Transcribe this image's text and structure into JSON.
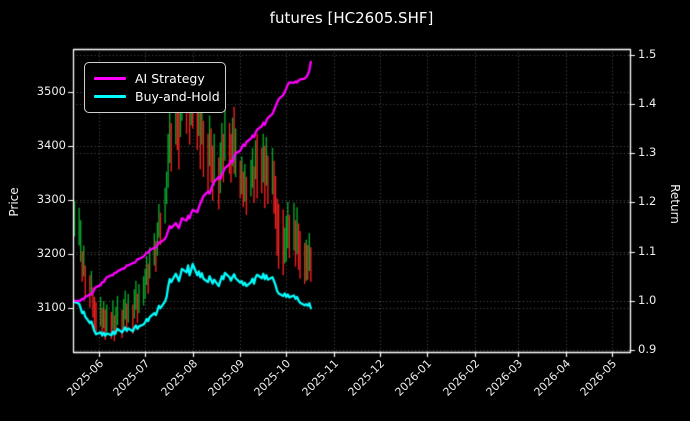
{
  "chart_data": {
    "type": "mixed",
    "title": "futures [HC2605.SHF]",
    "background": "#000000",
    "axes": {
      "x": {
        "start": "2025-05-15",
        "end": "2026-05-13",
        "grid": true,
        "ticks": [
          {
            "date": "2025-06-01",
            "label": "2025-06"
          },
          {
            "date": "2025-07-01",
            "label": "2025-07"
          },
          {
            "date": "2025-08-01",
            "label": "2025-08"
          },
          {
            "date": "2025-09-01",
            "label": "2025-09"
          },
          {
            "date": "2025-10-01",
            "label": "2025-10"
          },
          {
            "date": "2025-11-01",
            "label": "2025-11"
          },
          {
            "date": "2025-12-01",
            "label": "2025-12"
          },
          {
            "date": "2026-01-01",
            "label": "2026-01"
          },
          {
            "date": "2026-02-01",
            "label": "2026-02"
          },
          {
            "date": "2026-03-01",
            "label": "2026-03"
          },
          {
            "date": "2026-04-01",
            "label": "2026-04"
          },
          {
            "date": "2026-05-01",
            "label": "2026-05"
          }
        ]
      },
      "price": {
        "label": "Price",
        "side": "left",
        "min": 3018,
        "max": 3579,
        "ticks": [
          {
            "value": 3500,
            "label": "3500"
          },
          {
            "value": 3400,
            "label": "3400"
          },
          {
            "value": 3300,
            "label": "3300"
          },
          {
            "value": 3200,
            "label": "3200"
          },
          {
            "value": 3100,
            "label": "3100"
          }
        ]
      },
      "return": {
        "label": "Return",
        "side": "right",
        "min": 0.896,
        "max": 1.512,
        "ticks": [
          {
            "value": 1.5,
            "label": "1.5"
          },
          {
            "value": 1.4,
            "label": "1.4"
          },
          {
            "value": 1.3,
            "label": "1.3"
          },
          {
            "value": 1.2,
            "label": "1.2"
          },
          {
            "value": 1.1,
            "label": "1.1"
          },
          {
            "value": 1.0,
            "label": "1.0"
          },
          {
            "value": 0.9,
            "label": "0.9"
          }
        ]
      }
    },
    "legend": {
      "position": "upper-left",
      "items": [
        {
          "label": "AI Strategy",
          "color": "#ff00ff"
        },
        {
          "label": "Buy-and-Hold",
          "color": "#00ffff"
        }
      ]
    },
    "dates": [
      "2025-05-16",
      "2025-05-19",
      "2025-05-20",
      "2025-05-21",
      "2025-05-22",
      "2025-05-23",
      "2025-05-26",
      "2025-05-27",
      "2025-05-28",
      "2025-05-29",
      "2025-05-30",
      "2025-06-02",
      "2025-06-03",
      "2025-06-04",
      "2025-06-05",
      "2025-06-06",
      "2025-06-09",
      "2025-06-10",
      "2025-06-11",
      "2025-06-12",
      "2025-06-13",
      "2025-06-16",
      "2025-06-17",
      "2025-06-18",
      "2025-06-19",
      "2025-06-20",
      "2025-06-23",
      "2025-06-24",
      "2025-06-25",
      "2025-06-26",
      "2025-06-27",
      "2025-06-30",
      "2025-07-01",
      "2025-07-02",
      "2025-07-03",
      "2025-07-04",
      "2025-07-07",
      "2025-07-08",
      "2025-07-09",
      "2025-07-10",
      "2025-07-11",
      "2025-07-14",
      "2025-07-15",
      "2025-07-16",
      "2025-07-17",
      "2025-07-18",
      "2025-07-21",
      "2025-07-22",
      "2025-07-23",
      "2025-07-24",
      "2025-07-25",
      "2025-07-28",
      "2025-07-29",
      "2025-07-30",
      "2025-07-31",
      "2025-08-01",
      "2025-08-04",
      "2025-08-05",
      "2025-08-06",
      "2025-08-07",
      "2025-08-08",
      "2025-08-11",
      "2025-08-12",
      "2025-08-13",
      "2025-08-14",
      "2025-08-15",
      "2025-08-18",
      "2025-08-19",
      "2025-08-20",
      "2025-08-21",
      "2025-08-22",
      "2025-08-25",
      "2025-08-26",
      "2025-08-27",
      "2025-08-28",
      "2025-08-29",
      "2025-09-01",
      "2025-09-02",
      "2025-09-03",
      "2025-09-04",
      "2025-09-05",
      "2025-09-08",
      "2025-09-09",
      "2025-09-10",
      "2025-09-11",
      "2025-09-12",
      "2025-09-15",
      "2025-09-16",
      "2025-09-17",
      "2025-09-18",
      "2025-09-19",
      "2025-09-22",
      "2025-09-23",
      "2025-09-24",
      "2025-09-25",
      "2025-09-26",
      "2025-09-29",
      "2025-09-30",
      "2025-10-01",
      "2025-10-02",
      "2025-10-03",
      "2025-10-06",
      "2025-10-07",
      "2025-10-08",
      "2025-10-09",
      "2025-10-10",
      "2025-10-13",
      "2025-10-14",
      "2025-10-15",
      "2025-10-16",
      "2025-10-17"
    ],
    "series": [
      {
        "name": "price-high-low-bars",
        "type": "hl-bar",
        "axis": "price",
        "up_color": "#0ca32a",
        "down_color": "#ef2020",
        "high": [
          3298,
          3285,
          3262,
          3205,
          3215,
          3178,
          3160,
          3168,
          3138,
          3120,
          3110,
          3120,
          3100,
          3112,
          3096,
          3106,
          3092,
          3114,
          3086,
          3102,
          3122,
          3096,
          3116,
          3132,
          3108,
          3126,
          3106,
          3134,
          3150,
          3126,
          3144,
          3158,
          3172,
          3196,
          3182,
          3212,
          3238,
          3224,
          3258,
          3292,
          3276,
          3322,
          3352,
          3422,
          3478,
          3442,
          3514,
          3532,
          3502,
          3526,
          3548,
          3542,
          3545,
          3522,
          3540,
          3532,
          3498,
          3520,
          3472,
          3496,
          3446,
          3422,
          3456,
          3432,
          3400,
          3422,
          3378,
          3406,
          3442,
          3422,
          3468,
          3442,
          3422,
          3452,
          3472,
          3432,
          3372,
          3380,
          3352,
          3366,
          3342,
          3374,
          3396,
          3362,
          3410,
          3422,
          3396,
          3422,
          3400,
          3416,
          3382,
          3396,
          3372,
          3344,
          3302,
          3292,
          3282,
          3248,
          3270,
          3296,
          3272,
          3294,
          3262,
          3286,
          3256,
          3242,
          3220,
          3226,
          3216,
          3238,
          3212
        ],
        "low": [
          3232,
          3215,
          3185,
          3148,
          3158,
          3120,
          3100,
          3122,
          3082,
          3062,
          3052,
          3066,
          3046,
          3062,
          3040,
          3056,
          3042,
          3060,
          3038,
          3050,
          3068,
          3044,
          3062,
          3078,
          3054,
          3072,
          3052,
          3080,
          3096,
          3072,
          3090,
          3104,
          3116,
          3142,
          3126,
          3154,
          3178,
          3166,
          3196,
          3230,
          3216,
          3256,
          3292,
          3322,
          3368,
          3352,
          3402,
          3392,
          3356,
          3416,
          3446,
          3422,
          3462,
          3402,
          3438,
          3432,
          3392,
          3418,
          3356,
          3402,
          3342,
          3312,
          3362,
          3332,
          3298,
          3326,
          3282,
          3312,
          3346,
          3332,
          3372,
          3348,
          3332,
          3362,
          3348,
          3342,
          3302,
          3310,
          3286,
          3296,
          3272,
          3306,
          3322,
          3294,
          3338,
          3302,
          3312,
          3332,
          3284,
          3326,
          3292,
          3310,
          3274,
          3246,
          3196,
          3172,
          3160,
          3182,
          3186,
          3210,
          3192,
          3206,
          3176,
          3200,
          3170,
          3154,
          3144,
          3150,
          3152,
          3168,
          3148
        ],
        "dir": [
          "u",
          "u",
          "u",
          "d",
          "u",
          "d",
          "d",
          "u",
          "d",
          "d",
          "d",
          "u",
          "d",
          "u",
          "d",
          "u",
          "d",
          "u",
          "d",
          "u",
          "u",
          "d",
          "u",
          "u",
          "d",
          "u",
          "d",
          "u",
          "u",
          "d",
          "u",
          "u",
          "u",
          "u",
          "d",
          "u",
          "u",
          "d",
          "u",
          "u",
          "d",
          "u",
          "u",
          "u",
          "u",
          "d",
          "u",
          "d",
          "d",
          "u",
          "u",
          "d",
          "u",
          "d",
          "u",
          "d",
          "d",
          "u",
          "d",
          "u",
          "d",
          "d",
          "u",
          "d",
          "d",
          "u",
          "d",
          "u",
          "u",
          "d",
          "u",
          "d",
          "d",
          "u",
          "d",
          "u",
          "d",
          "u",
          "d",
          "u",
          "d",
          "u",
          "u",
          "d",
          "u",
          "d",
          "d",
          "u",
          "d",
          "u",
          "d",
          "u",
          "d",
          "d",
          "d",
          "d",
          "d",
          "u",
          "u",
          "u",
          "d",
          "u",
          "d",
          "u",
          "d",
          "d",
          "d",
          "u",
          "d",
          "u",
          "d"
        ]
      },
      {
        "name": "AI Strategy",
        "type": "line",
        "axis": "return",
        "color": "#ff00ff",
        "values": [
          1.0,
          1.0,
          1.001,
          1.004,
          1.003,
          1.008,
          1.013,
          1.013,
          1.018,
          1.024,
          1.028,
          1.032,
          1.038,
          1.038,
          1.044,
          1.048,
          1.052,
          1.052,
          1.057,
          1.057,
          1.06,
          1.065,
          1.065,
          1.068,
          1.072,
          1.072,
          1.077,
          1.077,
          1.08,
          1.085,
          1.085,
          1.09,
          1.094,
          1.098,
          1.098,
          1.103,
          1.108,
          1.108,
          1.113,
          1.119,
          1.119,
          1.126,
          1.133,
          1.142,
          1.152,
          1.148,
          1.158,
          1.152,
          1.148,
          1.158,
          1.168,
          1.163,
          1.173,
          1.168,
          1.178,
          1.185,
          1.18,
          1.19,
          1.198,
          1.205,
          1.213,
          1.222,
          1.218,
          1.227,
          1.236,
          1.242,
          1.252,
          1.248,
          1.257,
          1.263,
          1.27,
          1.278,
          1.285,
          1.282,
          1.292,
          1.3,
          1.305,
          1.312,
          1.318,
          1.315,
          1.323,
          1.33,
          1.336,
          1.333,
          1.342,
          1.348,
          1.355,
          1.362,
          1.358,
          1.366,
          1.372,
          1.38,
          1.388,
          1.395,
          1.403,
          1.41,
          1.418,
          1.425,
          1.432,
          1.44,
          1.444,
          1.443,
          1.446,
          1.444,
          1.448,
          1.45,
          1.452,
          1.455,
          1.46,
          1.468,
          1.486
        ]
      },
      {
        "name": "Buy-and-Hold",
        "type": "line",
        "axis": "return",
        "color": "#00ffff",
        "values": [
          0.998,
          0.994,
          0.985,
          0.975,
          0.978,
          0.968,
          0.955,
          0.958,
          0.948,
          0.938,
          0.932,
          0.936,
          0.93,
          0.935,
          0.929,
          0.934,
          0.93,
          0.938,
          0.932,
          0.937,
          0.943,
          0.936,
          0.941,
          0.946,
          0.939,
          0.944,
          0.938,
          0.945,
          0.95,
          0.943,
          0.948,
          0.952,
          0.956,
          0.963,
          0.959,
          0.967,
          0.975,
          0.971,
          0.98,
          0.99,
          0.985,
          0.999,
          1.008,
          1.028,
          1.044,
          1.038,
          1.055,
          1.048,
          1.04,
          1.052,
          1.065,
          1.058,
          1.072,
          1.052,
          1.062,
          1.075,
          1.052,
          1.06,
          1.048,
          1.056,
          1.045,
          1.038,
          1.05,
          1.043,
          1.035,
          1.043,
          1.03,
          1.04,
          1.05,
          1.044,
          1.057,
          1.048,
          1.041,
          1.049,
          1.054,
          1.046,
          1.037,
          1.04,
          1.032,
          1.037,
          1.03,
          1.038,
          1.045,
          1.035,
          1.048,
          1.053,
          1.046,
          1.055,
          1.044,
          1.052,
          1.043,
          1.048,
          1.04,
          1.032,
          1.02,
          1.015,
          1.01,
          1.015,
          1.008,
          1.013,
          1.007,
          1.011,
          1.004,
          1.008,
          1.001,
          0.996,
          0.991,
          0.993,
          0.99,
          0.995,
          0.985
        ]
      }
    ]
  }
}
